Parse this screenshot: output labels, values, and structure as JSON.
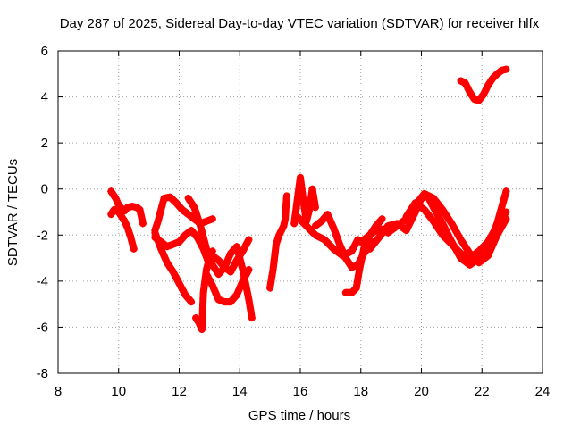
{
  "chart_data": {
    "type": "scatter",
    "title": "Day 287 of 2025, Sidereal Day-to-day VTEC variation (SDTVAR) for receiver hlfx",
    "xlabel": "GPS time / hours",
    "ylabel": "SDTVAR / TECUs",
    "xlim": [
      8,
      24
    ],
    "ylim": [
      -8,
      6
    ],
    "xticks": [
      "8",
      "10",
      "12",
      "14",
      "16",
      "18",
      "20",
      "22",
      "24"
    ],
    "yticks": [
      "-8",
      "-6",
      "-4",
      "-2",
      "0",
      "2",
      "4",
      "6"
    ],
    "grid": true,
    "marker": "+",
    "color": "#ff0000",
    "series": [
      {
        "name": "arc-1",
        "x": [
          9.75,
          9.9,
          10.0,
          10.1,
          10.2,
          10.3,
          10.45,
          10.6,
          10.7,
          10.75,
          10.8
        ],
        "y": [
          -0.1,
          -0.4,
          -0.7,
          -0.85,
          -0.95,
          -0.8,
          -0.75,
          -0.8,
          -0.9,
          -1.2,
          -1.5
        ]
      },
      {
        "name": "arc-2",
        "x": [
          9.75,
          9.85,
          10.0,
          10.1,
          10.2,
          10.3,
          10.4,
          10.5
        ],
        "y": [
          -1.1,
          -0.9,
          -1.0,
          -1.2,
          -1.4,
          -1.7,
          -2.1,
          -2.6
        ]
      },
      {
        "name": "arc-3",
        "x": [
          11.2,
          11.3,
          11.5,
          11.7,
          11.9,
          12.1,
          12.3,
          12.5,
          12.7,
          12.9,
          13.1
        ],
        "y": [
          -1.8,
          -1.4,
          -0.4,
          -0.35,
          -0.6,
          -0.9,
          -1.1,
          -1.3,
          -1.5,
          -1.4,
          -1.3
        ]
      },
      {
        "name": "arc-4",
        "x": [
          11.2,
          11.4,
          11.6,
          11.8,
          12.0,
          12.2,
          12.4,
          12.6,
          12.8,
          13.0
        ],
        "y": [
          -2.1,
          -2.3,
          -2.5,
          -2.4,
          -2.3,
          -2.0,
          -1.8,
          -2.1,
          -2.6,
          -3.3
        ]
      },
      {
        "name": "arc-5",
        "x": [
          11.2,
          11.4,
          11.6,
          11.8,
          12.0,
          12.2,
          12.4
        ],
        "y": [
          -1.9,
          -2.6,
          -3.2,
          -3.6,
          -4.1,
          -4.6,
          -4.9
        ]
      },
      {
        "name": "arc-6",
        "x": [
          12.3,
          12.5,
          12.7,
          12.9,
          13.1,
          13.3,
          13.5,
          13.7,
          13.9,
          14.1,
          14.3,
          14.4
        ],
        "y": [
          -0.4,
          -0.8,
          -1.6,
          -2.6,
          -3.3,
          -3.7,
          -3.4,
          -2.8,
          -2.5,
          -3.5,
          -4.8,
          -5.6
        ]
      },
      {
        "name": "arc-7",
        "x": [
          12.55,
          12.65,
          12.75,
          12.8,
          12.9,
          13.0,
          13.1
        ],
        "y": [
          -5.6,
          -5.8,
          -6.1,
          -4.5,
          -3.5,
          -3.0,
          -2.7
        ]
      },
      {
        "name": "arc-8",
        "x": [
          12.9,
          13.1,
          13.3,
          13.5,
          13.7,
          13.9,
          14.1,
          14.3
        ],
        "y": [
          -3.7,
          -4.2,
          -4.8,
          -4.9,
          -4.9,
          -4.6,
          -4.0,
          -3.5
        ]
      },
      {
        "name": "arc-9",
        "x": [
          13.1,
          13.3,
          13.5,
          13.7,
          13.9,
          14.1,
          14.3
        ],
        "y": [
          -2.9,
          -3.1,
          -3.4,
          -3.6,
          -3.1,
          -2.7,
          -2.2
        ]
      },
      {
        "name": "arc-10",
        "x": [
          15.0,
          15.1,
          15.2,
          15.3,
          15.45,
          15.5,
          15.55
        ],
        "y": [
          -4.3,
          -3.5,
          -2.4,
          -2.0,
          -1.6,
          -1.3,
          -0.3
        ]
      },
      {
        "name": "arc-11",
        "x": [
          15.8,
          15.9,
          16.0,
          16.1,
          16.2,
          16.3,
          16.4,
          16.5
        ],
        "y": [
          -1.5,
          -0.5,
          0.5,
          -0.5,
          -1.4,
          -0.9,
          0.0,
          -0.8
        ]
      },
      {
        "name": "arc-12",
        "x": [
          15.9,
          16.2,
          16.5,
          16.8,
          17.1,
          17.4,
          17.7,
          17.9
        ],
        "y": [
          -1.2,
          -1.6,
          -2.0,
          -2.2,
          -2.6,
          -2.9,
          -2.7,
          -2.2
        ]
      },
      {
        "name": "arc-13",
        "x": [
          16.5,
          16.7,
          16.9,
          17.1,
          17.3,
          17.5,
          17.7,
          17.9,
          18.1,
          18.4
        ],
        "y": [
          -1.6,
          -1.4,
          -1.1,
          -1.7,
          -2.4,
          -3.0,
          -3.4,
          -3.3,
          -2.8,
          -2.3
        ]
      },
      {
        "name": "arc-14",
        "x": [
          17.5,
          17.7,
          17.85,
          17.95,
          18.1,
          18.3,
          18.5,
          18.7
        ],
        "y": [
          -4.5,
          -4.5,
          -4.3,
          -3.5,
          -2.6,
          -2.0,
          -1.6,
          -1.3
        ]
      },
      {
        "name": "arc-15",
        "x": [
          18.0,
          18.3,
          18.6,
          18.9,
          19.2,
          19.5,
          19.8,
          20.1,
          20.4,
          20.7,
          21.0,
          21.3,
          21.6,
          21.9,
          22.2,
          22.5,
          22.8
        ],
        "y": [
          -2.3,
          -2.0,
          -1.7,
          -1.9,
          -1.6,
          -1.3,
          -0.7,
          -0.2,
          -0.4,
          -0.9,
          -1.5,
          -2.2,
          -2.8,
          -3.2,
          -2.9,
          -2.0,
          -1.3
        ]
      },
      {
        "name": "arc-16",
        "x": [
          18.3,
          18.6,
          18.9,
          19.2,
          19.5,
          19.8,
          20.0,
          20.2,
          20.4,
          20.7,
          21.0,
          21.3,
          21.6,
          21.9,
          22.2,
          22.5,
          22.8
        ],
        "y": [
          -2.6,
          -2.1,
          -1.6,
          -1.5,
          -1.8,
          -1.0,
          -0.4,
          -0.3,
          -0.8,
          -1.5,
          -2.3,
          -3.0,
          -3.3,
          -3.0,
          -2.5,
          -1.5,
          -0.1
        ]
      },
      {
        "name": "arc-17",
        "x": [
          19.5,
          19.8,
          20.1,
          20.4,
          20.7,
          21.0,
          21.3,
          21.6,
          21.9,
          22.2,
          22.5,
          22.8
        ],
        "y": [
          -1.2,
          -0.6,
          -0.9,
          -1.4,
          -2.0,
          -2.4,
          -2.8,
          -3.0,
          -2.7,
          -2.3,
          -1.6,
          -1.0
        ]
      },
      {
        "name": "arc-18",
        "x": [
          21.3,
          21.45,
          21.6,
          21.75,
          21.9,
          22.05,
          22.2,
          22.35,
          22.5,
          22.65,
          22.8
        ],
        "y": [
          4.7,
          4.6,
          4.2,
          3.9,
          3.85,
          4.1,
          4.5,
          4.8,
          5.0,
          5.15,
          5.2
        ]
      }
    ]
  }
}
